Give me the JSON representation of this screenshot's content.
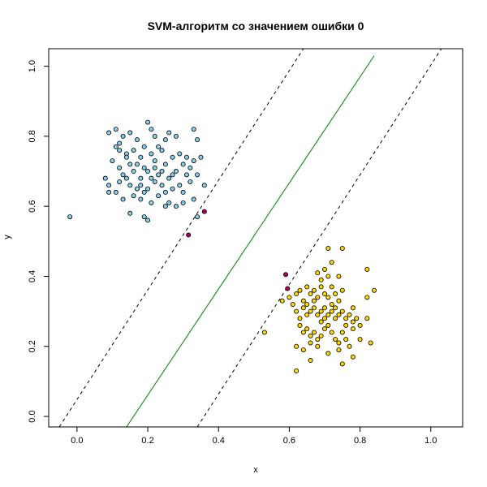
{
  "chart_data": {
    "type": "scatter",
    "title": "SVM-алгоритм со значением ошибки 0",
    "xlabel": "x",
    "ylabel": "y",
    "xlim": [
      -0.08,
      1.09
    ],
    "ylim": [
      -0.03,
      1.05
    ],
    "x_ticks": [
      0.0,
      0.2,
      0.4,
      0.6,
      0.8,
      1.0
    ],
    "x_tick_labels": [
      "0.0",
      "0.2",
      "0.4",
      "0.6",
      "0.8",
      "1.0"
    ],
    "y_ticks": [
      0.0,
      0.2,
      0.4,
      0.6,
      0.8,
      1.0
    ],
    "y_tick_labels": [
      "0.0",
      "0.2",
      "0.4",
      "0.6",
      "0.8",
      "1.0"
    ],
    "grid": false,
    "legend": "none",
    "colors": {
      "class_blue": "#87ceeb",
      "class_yellow": "#ffd700",
      "support_vector": "#b0005a",
      "decision_boundary": "#008000",
      "margin": "#000000",
      "point_edge": "#000000"
    },
    "series": [
      {
        "marker": "circle",
        "color": "#87ceeb",
        "points": [
          [
            -0.02,
            0.57
          ],
          [
            0.09,
            0.81
          ],
          [
            0.11,
            0.82
          ],
          [
            0.12,
            0.78
          ],
          [
            0.13,
            0.8
          ],
          [
            0.15,
            0.81
          ],
          [
            0.16,
            0.76
          ],
          [
            0.18,
            0.74
          ],
          [
            0.2,
            0.84
          ],
          [
            0.21,
            0.82
          ],
          [
            0.22,
            0.8
          ],
          [
            0.23,
            0.77
          ],
          [
            0.25,
            0.79
          ],
          [
            0.26,
            0.81
          ],
          [
            0.28,
            0.8
          ],
          [
            0.33,
            0.82
          ],
          [
            0.34,
            0.79
          ],
          [
            0.11,
            0.77
          ],
          [
            0.14,
            0.75
          ],
          [
            0.17,
            0.72
          ],
          [
            0.19,
            0.77
          ],
          [
            0.21,
            0.75
          ],
          [
            0.22,
            0.73
          ],
          [
            0.24,
            0.76
          ],
          [
            0.25,
            0.72
          ],
          [
            0.27,
            0.74
          ],
          [
            0.29,
            0.75
          ],
          [
            0.3,
            0.72
          ],
          [
            0.31,
            0.74
          ],
          [
            0.33,
            0.73
          ],
          [
            0.1,
            0.73
          ],
          [
            0.12,
            0.71
          ],
          [
            0.13,
            0.69
          ],
          [
            0.15,
            0.72
          ],
          [
            0.16,
            0.7
          ],
          [
            0.18,
            0.68
          ],
          [
            0.19,
            0.71
          ],
          [
            0.2,
            0.7
          ],
          [
            0.21,
            0.68
          ],
          [
            0.23,
            0.69
          ],
          [
            0.24,
            0.7
          ],
          [
            0.26,
            0.68
          ],
          [
            0.28,
            0.7
          ],
          [
            0.31,
            0.69
          ],
          [
            0.32,
            0.71
          ],
          [
            0.34,
            0.69
          ],
          [
            0.08,
            0.68
          ],
          [
            0.09,
            0.66
          ],
          [
            0.11,
            0.64
          ],
          [
            0.12,
            0.67
          ],
          [
            0.14,
            0.68
          ],
          [
            0.15,
            0.66
          ],
          [
            0.17,
            0.65
          ],
          [
            0.18,
            0.66
          ],
          [
            0.19,
            0.64
          ],
          [
            0.2,
            0.65
          ],
          [
            0.22,
            0.67
          ],
          [
            0.24,
            0.66
          ],
          [
            0.25,
            0.64
          ],
          [
            0.27,
            0.65
          ],
          [
            0.29,
            0.66
          ],
          [
            0.32,
            0.67
          ],
          [
            0.36,
            0.66
          ],
          [
            0.09,
            0.64
          ],
          [
            0.13,
            0.62
          ],
          [
            0.16,
            0.63
          ],
          [
            0.18,
            0.62
          ],
          [
            0.21,
            0.61
          ],
          [
            0.23,
            0.63
          ],
          [
            0.26,
            0.61
          ],
          [
            0.28,
            0.6
          ],
          [
            0.3,
            0.61
          ],
          [
            0.33,
            0.62
          ],
          [
            0.15,
            0.58
          ],
          [
            0.19,
            0.57
          ],
          [
            0.2,
            0.56
          ],
          [
            0.25,
            0.6
          ],
          [
            0.34,
            0.57
          ],
          [
            0.14,
            0.74
          ],
          [
            0.27,
            0.69
          ],
          [
            0.3,
            0.64
          ],
          [
            0.35,
            0.74
          ],
          [
            0.17,
            0.79
          ],
          [
            0.22,
            0.71
          ],
          [
            0.12,
            0.76
          ]
        ]
      },
      {
        "marker": "circle",
        "color": "#ffd700",
        "points": [
          [
            0.53,
            0.24
          ],
          [
            0.58,
            0.33
          ],
          [
            0.6,
            0.34
          ],
          [
            0.61,
            0.32
          ],
          [
            0.62,
            0.35
          ],
          [
            0.63,
            0.36
          ],
          [
            0.64,
            0.33
          ],
          [
            0.65,
            0.37
          ],
          [
            0.66,
            0.35
          ],
          [
            0.67,
            0.36
          ],
          [
            0.68,
            0.34
          ],
          [
            0.69,
            0.37
          ],
          [
            0.7,
            0.35
          ],
          [
            0.71,
            0.34
          ],
          [
            0.72,
            0.37
          ],
          [
            0.73,
            0.35
          ],
          [
            0.74,
            0.33
          ],
          [
            0.75,
            0.36
          ],
          [
            0.62,
            0.3
          ],
          [
            0.63,
            0.28
          ],
          [
            0.64,
            0.31
          ],
          [
            0.65,
            0.29
          ],
          [
            0.66,
            0.3
          ],
          [
            0.67,
            0.31
          ],
          [
            0.68,
            0.29
          ],
          [
            0.69,
            0.3
          ],
          [
            0.7,
            0.31
          ],
          [
            0.71,
            0.29
          ],
          [
            0.72,
            0.3
          ],
          [
            0.73,
            0.28
          ],
          [
            0.74,
            0.29
          ],
          [
            0.75,
            0.3
          ],
          [
            0.76,
            0.28
          ],
          [
            0.77,
            0.29
          ],
          [
            0.78,
            0.27
          ],
          [
            0.79,
            0.28
          ],
          [
            0.8,
            0.26
          ],
          [
            0.82,
            0.28
          ],
          [
            0.78,
            0.25
          ],
          [
            0.8,
            0.22
          ],
          [
            0.63,
            0.26
          ],
          [
            0.64,
            0.24
          ],
          [
            0.65,
            0.25
          ],
          [
            0.66,
            0.23
          ],
          [
            0.67,
            0.24
          ],
          [
            0.68,
            0.22
          ],
          [
            0.69,
            0.23
          ],
          [
            0.7,
            0.25
          ],
          [
            0.71,
            0.26
          ],
          [
            0.72,
            0.24
          ],
          [
            0.73,
            0.22
          ],
          [
            0.74,
            0.21
          ],
          [
            0.75,
            0.24
          ],
          [
            0.76,
            0.22
          ],
          [
            0.77,
            0.2
          ],
          [
            0.62,
            0.2
          ],
          [
            0.64,
            0.19
          ],
          [
            0.66,
            0.21
          ],
          [
            0.68,
            0.2
          ],
          [
            0.71,
            0.18
          ],
          [
            0.74,
            0.19
          ],
          [
            0.62,
            0.13
          ],
          [
            0.66,
            0.16
          ],
          [
            0.75,
            0.15
          ],
          [
            0.78,
            0.17
          ],
          [
            0.71,
            0.48
          ],
          [
            0.75,
            0.48
          ],
          [
            0.7,
            0.42
          ],
          [
            0.72,
            0.44
          ],
          [
            0.82,
            0.42
          ],
          [
            0.84,
            0.36
          ],
          [
            0.82,
            0.34
          ],
          [
            0.69,
            0.39
          ],
          [
            0.74,
            0.4
          ],
          [
            0.68,
            0.41
          ],
          [
            0.67,
            0.33
          ],
          [
            0.73,
            0.31
          ],
          [
            0.78,
            0.31
          ],
          [
            0.71,
            0.4
          ],
          [
            0.69,
            0.27
          ],
          [
            0.83,
            0.21
          ],
          [
            0.76,
            0.26
          ],
          [
            0.65,
            0.32
          ],
          [
            0.7,
            0.28
          ],
          [
            0.72,
            0.32
          ]
        ]
      },
      {
        "marker": "circle",
        "color": "#b0005a",
        "points": [
          [
            0.36,
            0.585
          ],
          [
            0.315,
            0.518
          ],
          [
            0.59,
            0.405
          ],
          [
            0.595,
            0.365
          ]
        ]
      }
    ],
    "lines": [
      {
        "style": "solid",
        "color": "#008000",
        "from": [
          0.14,
          -0.03
        ],
        "to": [
          0.84,
          1.03
        ]
      },
      {
        "style": "dashed",
        "color": "#000000",
        "from": [
          -0.05,
          -0.03
        ],
        "to": [
          0.64,
          1.05
        ]
      },
      {
        "style": "dashed",
        "color": "#000000",
        "from": [
          0.34,
          -0.03
        ],
        "to": [
          1.03,
          1.05
        ]
      }
    ]
  }
}
